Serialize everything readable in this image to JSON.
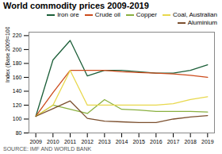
{
  "chart_data": {
    "type": "line",
    "title": "World commodity prices 2009-2019",
    "source": "SOURCE: IMF AND WORLD BANK",
    "ylabel": "Index (Base 2009=100)",
    "x": [
      2009,
      2010,
      2011,
      2012,
      2013,
      2014,
      2015,
      2016,
      2017,
      2018,
      2019
    ],
    "series": [
      {
        "name": "Iron ore",
        "color": "#1b5e38",
        "values": [
          104,
          185,
          213,
          162,
          170,
          170,
          168,
          166,
          166,
          170,
          178
        ]
      },
      {
        "name": "Crude oil",
        "color": "#cc4b1c",
        "values": [
          104,
          138,
          170,
          170,
          170,
          168,
          167,
          166,
          165,
          163,
          160
        ]
      },
      {
        "name": "Copper",
        "color": "#8ab040",
        "values": [
          104,
          120,
          114,
          108,
          128,
          114,
          113,
          111,
          111,
          111,
          110
        ]
      },
      {
        "name": "Coal, Australian",
        "color": "#e8d84d",
        "values": [
          104,
          120,
          170,
          120,
          120,
          120,
          120,
          120,
          122,
          128,
          132
        ]
      },
      {
        "name": "Aluminium",
        "color": "#7b4f2e",
        "values": [
          104,
          115,
          126,
          101,
          97,
          96,
          95,
          95,
          100,
          103,
          105
        ]
      }
    ],
    "xlim": [
      2008.6,
      2019.4
    ],
    "xticks": [
      2009,
      2010,
      2011,
      2012,
      2013,
      2014,
      2015,
      2016,
      2017,
      2018,
      2019
    ],
    "ylim": [
      80,
      225
    ],
    "yticks": [
      80,
      100,
      120,
      140,
      160,
      180,
      200,
      220
    ],
    "grid": false,
    "legend": "upper right"
  }
}
